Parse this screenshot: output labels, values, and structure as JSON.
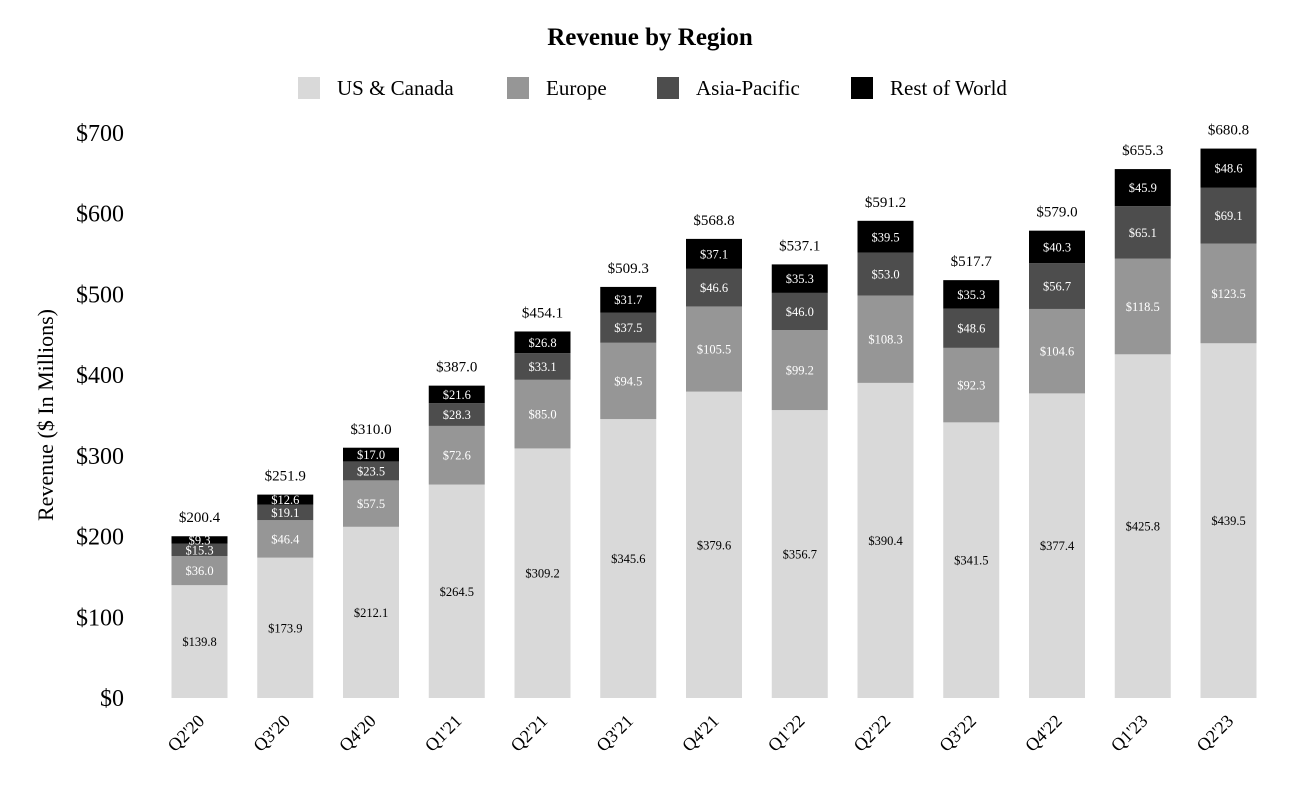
{
  "chart_data": {
    "type": "bar",
    "stacked": true,
    "title": "Revenue by Region",
    "xlabel": "",
    "ylabel": "Revenue ($ In Millions)",
    "ylim": [
      0,
      700
    ],
    "yticks": [
      "$0",
      "$100",
      "$200",
      "$300",
      "$400",
      "$500",
      "$600",
      "$700"
    ],
    "ytick_values": [
      0,
      100,
      200,
      300,
      400,
      500,
      600,
      700
    ],
    "grid": false,
    "legend_position": "top-center",
    "categories": [
      "Q2'20",
      "Q3'20",
      "Q4'20",
      "Q1'21",
      "Q2'21",
      "Q3'21",
      "Q4'21",
      "Q1'22",
      "Q2'22",
      "Q3'22",
      "Q4'22",
      "Q1'23",
      "Q2'23"
    ],
    "series": [
      {
        "name": "US & Canada",
        "color": "#d9d9d9",
        "label_color": "#000000",
        "values": [
          139.8,
          173.9,
          212.1,
          264.5,
          309.2,
          345.6,
          379.6,
          356.7,
          390.4,
          341.5,
          377.4,
          425.8,
          439.5
        ],
        "labels": [
          "$139.8",
          "$173.9",
          "$212.1",
          "$264.5",
          "$309.2",
          "$345.6",
          "$379.6",
          "$356.7",
          "$390.4",
          "$341.5",
          "$377.4",
          "$425.8",
          "$439.5"
        ]
      },
      {
        "name": "Europe",
        "color": "#969696",
        "label_color": "#ffffff",
        "values": [
          36.0,
          46.4,
          57.5,
          72.6,
          85.0,
          94.5,
          105.5,
          99.2,
          108.3,
          92.3,
          104.6,
          118.5,
          123.5
        ],
        "labels": [
          "$36.0",
          "$46.4",
          "$57.5",
          "$72.6",
          "$85.0",
          "$94.5",
          "$105.5",
          "$99.2",
          "$108.3",
          "$92.3",
          "$104.6",
          "$118.5",
          "$123.5"
        ]
      },
      {
        "name": "Asia-Pacific",
        "color": "#4d4d4d",
        "label_color": "#ffffff",
        "values": [
          15.3,
          19.1,
          23.5,
          28.3,
          33.1,
          37.5,
          46.6,
          46.0,
          53.0,
          48.6,
          56.7,
          65.1,
          69.1
        ],
        "labels": [
          "$15.3",
          "$19.1",
          "$23.5",
          "$28.3",
          "$33.1",
          "$37.5",
          "$46.6",
          "$46.0",
          "$53.0",
          "$48.6",
          "$56.7",
          "$65.1",
          "$69.1"
        ]
      },
      {
        "name": "Rest of World",
        "color": "#000000",
        "label_color": "#ffffff",
        "values": [
          9.3,
          12.6,
          17.0,
          21.6,
          26.8,
          31.7,
          37.1,
          35.3,
          39.5,
          35.3,
          40.3,
          45.9,
          48.6
        ],
        "labels": [
          "$9.3",
          "$12.6",
          "$17.0",
          "$21.6",
          "$26.8",
          "$31.7",
          "$37.1",
          "$35.3",
          "$39.5",
          "$35.3",
          "$40.3",
          "$45.9",
          "$48.6"
        ]
      }
    ],
    "totals": [
      200.4,
      251.9,
      310.0,
      387.0,
      454.1,
      509.3,
      568.8,
      537.1,
      591.2,
      517.7,
      579.0,
      655.3,
      680.8
    ],
    "total_labels": [
      "$200.4",
      "$251.9",
      "$310.0",
      "$387.0",
      "$454.1",
      "$509.3",
      "$568.8",
      "$537.1",
      "$591.2",
      "$517.7",
      "$579.0",
      "$655.3",
      "$680.8"
    ]
  }
}
